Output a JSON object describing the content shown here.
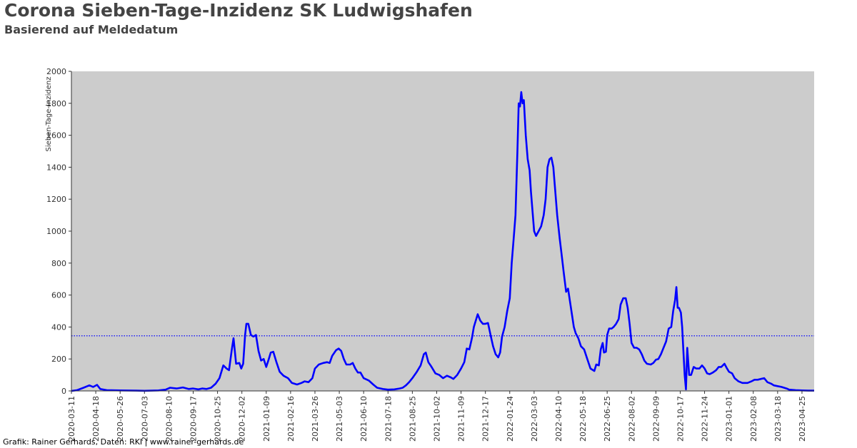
{
  "header": {
    "title": "Corona Sieben-Tage-Inzidenz SK Ludwigshafen",
    "subtitle": "Basierend auf Meldedatum"
  },
  "footer": {
    "credit": "Grafik: Rainer Gerhards, Daten: RKI | www.rainer-gerhards.de"
  },
  "chart_data": {
    "type": "line",
    "title": "Corona Sieben-Tage-Inzidenz SK Ludwigshafen",
    "subtitle": "Basierend auf Meldedatum",
    "xlabel": "",
    "ylabel": "Sieben-Tage-Inzidenz",
    "xlim": [
      "2020-03-11",
      "2023-05-14"
    ],
    "ylim": [
      0,
      2000
    ],
    "yticks": [
      0,
      200,
      400,
      600,
      800,
      1000,
      1200,
      1400,
      1600,
      1800,
      2000
    ],
    "xticks": [
      "2020-03-11",
      "2020-04-18",
      "2020-05-26",
      "2020-07-03",
      "2020-08-10",
      "2020-09-17",
      "2020-10-25",
      "2020-12-02",
      "2021-01-09",
      "2021-02-16",
      "2021-03-26",
      "2021-05-03",
      "2021-06-10",
      "2021-07-18",
      "2021-08-25",
      "2021-10-02",
      "2021-11-09",
      "2021-12-17",
      "2022-01-24",
      "2022-03-03",
      "2022-04-10",
      "2022-05-18",
      "2022-06-25",
      "2022-08-02",
      "2022-09-09",
      "2022-10-17",
      "2022-11-24",
      "2023-01-01",
      "2023-02-08",
      "2023-03-18",
      "2023-04-25"
    ],
    "grid": false,
    "background": "#cccccc",
    "line_color": "#0000ff",
    "reference_line": {
      "y": 345,
      "style": "dotted",
      "color": "#0000ff"
    },
    "series": [
      {
        "values": [
          [
            "2020-03-11",
            0
          ],
          [
            "2020-03-20",
            5
          ],
          [
            "2020-03-30",
            20
          ],
          [
            "2020-04-08",
            35
          ],
          [
            "2020-04-14",
            25
          ],
          [
            "2020-04-20",
            38
          ],
          [
            "2020-04-25",
            12
          ],
          [
            "2020-05-05",
            5
          ],
          [
            "2020-05-26",
            3
          ],
          [
            "2020-06-20",
            2
          ],
          [
            "2020-07-03",
            1
          ],
          [
            "2020-07-25",
            3
          ],
          [
            "2020-08-05",
            8
          ],
          [
            "2020-08-12",
            20
          ],
          [
            "2020-08-22",
            15
          ],
          [
            "2020-09-01",
            22
          ],
          [
            "2020-09-10",
            12
          ],
          [
            "2020-09-17",
            15
          ],
          [
            "2020-09-25",
            10
          ],
          [
            "2020-10-01",
            15
          ],
          [
            "2020-10-08",
            12
          ],
          [
            "2020-10-15",
            20
          ],
          [
            "2020-10-22",
            45
          ],
          [
            "2020-10-28",
            80
          ],
          [
            "2020-11-03",
            160
          ],
          [
            "2020-11-08",
            140
          ],
          [
            "2020-11-12",
            130
          ],
          [
            "2020-11-16",
            250
          ],
          [
            "2020-11-19",
            330
          ],
          [
            "2020-11-23",
            170
          ],
          [
            "2020-11-28",
            175
          ],
          [
            "2020-12-01",
            140
          ],
          [
            "2020-12-04",
            170
          ],
          [
            "2020-12-07",
            350
          ],
          [
            "2020-12-09",
            420
          ],
          [
            "2020-12-12",
            420
          ],
          [
            "2020-12-16",
            350
          ],
          [
            "2020-12-20",
            340
          ],
          [
            "2020-12-24",
            350
          ],
          [
            "2020-12-28",
            250
          ],
          [
            "2021-01-01",
            190
          ],
          [
            "2021-01-05",
            200
          ],
          [
            "2021-01-09",
            150
          ],
          [
            "2021-01-13",
            200
          ],
          [
            "2021-01-16",
            240
          ],
          [
            "2021-01-20",
            245
          ],
          [
            "2021-01-25",
            180
          ],
          [
            "2021-01-30",
            120
          ],
          [
            "2021-02-05",
            95
          ],
          [
            "2021-02-12",
            80
          ],
          [
            "2021-02-18",
            50
          ],
          [
            "2021-02-26",
            40
          ],
          [
            "2021-03-05",
            50
          ],
          [
            "2021-03-10",
            60
          ],
          [
            "2021-03-16",
            55
          ],
          [
            "2021-03-22",
            80
          ],
          [
            "2021-03-26",
            140
          ],
          [
            "2021-04-01",
            165
          ],
          [
            "2021-04-08",
            175
          ],
          [
            "2021-04-14",
            180
          ],
          [
            "2021-04-18",
            175
          ],
          [
            "2021-04-22",
            220
          ],
          [
            "2021-04-28",
            255
          ],
          [
            "2021-05-02",
            265
          ],
          [
            "2021-05-06",
            250
          ],
          [
            "2021-05-10",
            200
          ],
          [
            "2021-05-14",
            165
          ],
          [
            "2021-05-20",
            165
          ],
          [
            "2021-05-24",
            175
          ],
          [
            "2021-05-28",
            140
          ],
          [
            "2021-06-01",
            115
          ],
          [
            "2021-06-05",
            115
          ],
          [
            "2021-06-10",
            80
          ],
          [
            "2021-06-18",
            65
          ],
          [
            "2021-06-25",
            40
          ],
          [
            "2021-07-01",
            20
          ],
          [
            "2021-07-10",
            12
          ],
          [
            "2021-07-18",
            8
          ],
          [
            "2021-07-28",
            10
          ],
          [
            "2021-08-05",
            15
          ],
          [
            "2021-08-10",
            20
          ],
          [
            "2021-08-15",
            35
          ],
          [
            "2021-08-20",
            55
          ],
          [
            "2021-08-25",
            80
          ],
          [
            "2021-09-01",
            120
          ],
          [
            "2021-09-07",
            160
          ],
          [
            "2021-09-12",
            230
          ],
          [
            "2021-09-15",
            240
          ],
          [
            "2021-09-19",
            180
          ],
          [
            "2021-09-24",
            150
          ],
          [
            "2021-09-30",
            110
          ],
          [
            "2021-10-06",
            100
          ],
          [
            "2021-10-12",
            80
          ],
          [
            "2021-10-18",
            95
          ],
          [
            "2021-10-24",
            85
          ],
          [
            "2021-10-28",
            75
          ],
          [
            "2021-11-03",
            100
          ],
          [
            "2021-11-09",
            140
          ],
          [
            "2021-11-14",
            180
          ],
          [
            "2021-11-18",
            265
          ],
          [
            "2021-11-22",
            260
          ],
          [
            "2021-11-26",
            330
          ],
          [
            "2021-11-29",
            400
          ],
          [
            "2021-12-02",
            440
          ],
          [
            "2021-12-05",
            480
          ],
          [
            "2021-12-09",
            440
          ],
          [
            "2021-12-13",
            420
          ],
          [
            "2021-12-17",
            420
          ],
          [
            "2021-12-21",
            425
          ],
          [
            "2021-12-25",
            350
          ],
          [
            "2021-12-29",
            280
          ],
          [
            "2022-01-02",
            230
          ],
          [
            "2022-01-06",
            210
          ],
          [
            "2022-01-09",
            240
          ],
          [
            "2022-01-12",
            340
          ],
          [
            "2022-01-16",
            400
          ],
          [
            "2022-01-20",
            500
          ],
          [
            "2022-01-24",
            580
          ],
          [
            "2022-01-27",
            800
          ],
          [
            "2022-01-30",
            950
          ],
          [
            "2022-02-02",
            1100
          ],
          [
            "2022-02-05",
            1500
          ],
          [
            "2022-02-07",
            1800
          ],
          [
            "2022-02-09",
            1780
          ],
          [
            "2022-02-11",
            1870
          ],
          [
            "2022-02-13",
            1800
          ],
          [
            "2022-02-15",
            1820
          ],
          [
            "2022-02-18",
            1600
          ],
          [
            "2022-02-21",
            1450
          ],
          [
            "2022-02-24",
            1380
          ],
          [
            "2022-02-26",
            1250
          ],
          [
            "2022-03-01",
            1100
          ],
          [
            "2022-03-03",
            1000
          ],
          [
            "2022-03-06",
            970
          ],
          [
            "2022-03-10",
            1000
          ],
          [
            "2022-03-14",
            1030
          ],
          [
            "2022-03-18",
            1100
          ],
          [
            "2022-03-21",
            1200
          ],
          [
            "2022-03-24",
            1400
          ],
          [
            "2022-03-27",
            1450
          ],
          [
            "2022-03-30",
            1460
          ],
          [
            "2022-04-02",
            1400
          ],
          [
            "2022-04-05",
            1250
          ],
          [
            "2022-04-08",
            1100
          ],
          [
            "2022-04-12",
            950
          ],
          [
            "2022-04-15",
            850
          ],
          [
            "2022-04-18",
            750
          ],
          [
            "2022-04-22",
            620
          ],
          [
            "2022-04-25",
            640
          ],
          [
            "2022-04-28",
            560
          ],
          [
            "2022-05-01",
            480
          ],
          [
            "2022-05-04",
            400
          ],
          [
            "2022-05-07",
            360
          ],
          [
            "2022-05-11",
            330
          ],
          [
            "2022-05-15",
            280
          ],
          [
            "2022-05-20",
            260
          ],
          [
            "2022-05-25",
            200
          ],
          [
            "2022-05-30",
            140
          ],
          [
            "2022-06-05",
            125
          ],
          [
            "2022-06-08",
            165
          ],
          [
            "2022-06-12",
            160
          ],
          [
            "2022-06-15",
            260
          ],
          [
            "2022-06-18",
            300
          ],
          [
            "2022-06-20",
            240
          ],
          [
            "2022-06-23",
            245
          ],
          [
            "2022-06-25",
            350
          ],
          [
            "2022-06-28",
            390
          ],
          [
            "2022-07-02",
            390
          ],
          [
            "2022-07-05",
            400
          ],
          [
            "2022-07-09",
            420
          ],
          [
            "2022-07-13",
            450
          ],
          [
            "2022-07-16",
            540
          ],
          [
            "2022-07-20",
            580
          ],
          [
            "2022-07-24",
            580
          ],
          [
            "2022-07-27",
            520
          ],
          [
            "2022-07-30",
            420
          ],
          [
            "2022-08-02",
            300
          ],
          [
            "2022-08-06",
            270
          ],
          [
            "2022-08-10",
            270
          ],
          [
            "2022-08-14",
            260
          ],
          [
            "2022-08-18",
            230
          ],
          [
            "2022-08-22",
            190
          ],
          [
            "2022-08-26",
            170
          ],
          [
            "2022-09-01",
            165
          ],
          [
            "2022-09-05",
            175
          ],
          [
            "2022-09-09",
            195
          ],
          [
            "2022-09-13",
            200
          ],
          [
            "2022-09-17",
            230
          ],
          [
            "2022-09-21",
            270
          ],
          [
            "2022-09-25",
            310
          ],
          [
            "2022-09-29",
            390
          ],
          [
            "2022-10-03",
            400
          ],
          [
            "2022-10-06",
            500
          ],
          [
            "2022-10-09",
            570
          ],
          [
            "2022-10-11",
            650
          ],
          [
            "2022-10-13",
            520
          ],
          [
            "2022-10-15",
            520
          ],
          [
            "2022-10-18",
            490
          ],
          [
            "2022-10-20",
            400
          ],
          [
            "2022-10-22",
            250
          ],
          [
            "2022-10-24",
            100
          ],
          [
            "2022-10-26",
            10
          ],
          [
            "2022-10-28",
            270
          ],
          [
            "2022-10-31",
            100
          ],
          [
            "2022-11-03",
            100
          ],
          [
            "2022-11-07",
            150
          ],
          [
            "2022-11-11",
            140
          ],
          [
            "2022-11-16",
            140
          ],
          [
            "2022-11-20",
            160
          ],
          [
            "2022-11-24",
            140
          ],
          [
            "2022-11-28",
            110
          ],
          [
            "2022-12-02",
            105
          ],
          [
            "2022-12-07",
            115
          ],
          [
            "2022-12-12",
            130
          ],
          [
            "2022-12-16",
            150
          ],
          [
            "2022-12-20",
            150
          ],
          [
            "2022-12-25",
            170
          ],
          [
            "2022-12-29",
            140
          ],
          [
            "2023-01-01",
            120
          ],
          [
            "2023-01-06",
            110
          ],
          [
            "2023-01-10",
            80
          ],
          [
            "2023-01-16",
            60
          ],
          [
            "2023-01-22",
            50
          ],
          [
            "2023-01-30",
            50
          ],
          [
            "2023-02-05",
            60
          ],
          [
            "2023-02-10",
            70
          ],
          [
            "2023-02-15",
            70
          ],
          [
            "2023-02-20",
            75
          ],
          [
            "2023-02-25",
            80
          ],
          [
            "2023-03-02",
            55
          ],
          [
            "2023-03-08",
            45
          ],
          [
            "2023-03-12",
            35
          ],
          [
            "2023-03-18",
            30
          ],
          [
            "2023-03-24",
            25
          ],
          [
            "2023-04-01",
            15
          ],
          [
            "2023-04-05",
            8
          ],
          [
            "2023-04-15",
            5
          ],
          [
            "2023-04-25",
            3
          ],
          [
            "2023-05-05",
            2
          ],
          [
            "2023-05-14",
            2
          ]
        ]
      }
    ]
  }
}
